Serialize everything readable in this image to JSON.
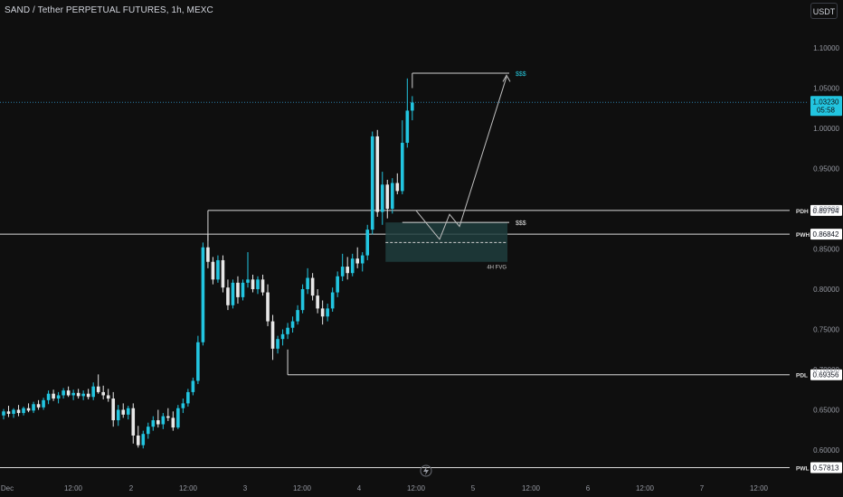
{
  "header": {
    "title": "SAND / Tether PERPETUAL FUTURES, 1h, MEXC",
    "currency_button": "USDT"
  },
  "colors": {
    "background": "#0f0f0f",
    "up": "#22c5e0",
    "down": "#e8e8e8",
    "price_line": "#2a7fa8",
    "fvg_fill": "#1f3d3d",
    "level_line": "#d9d9d9",
    "label_cyan": "#26c6da"
  },
  "chart_data": {
    "type": "candlestick",
    "y_axis": {
      "ticks": [
        "1.10000",
        "1.05000",
        "1.00000",
        "0.95000",
        "0.90000",
        "0.85000",
        "0.80000",
        "0.75000",
        "0.70000",
        "0.65000",
        "0.60000"
      ],
      "tick_values": [
        1.1,
        1.05,
        1.0,
        0.95,
        0.9,
        0.85,
        0.8,
        0.75,
        0.7,
        0.65,
        0.6
      ]
    },
    "x_axis": {
      "ticks": [
        "Dec",
        "12:00",
        "2",
        "12:00",
        "3",
        "12:00",
        "4",
        "12:00",
        "5",
        "12:00",
        "6",
        "12:00",
        "7",
        "12:00"
      ]
    },
    "current_price": {
      "value": 1.0323,
      "label": "1.03230",
      "countdown": "05:58"
    },
    "levels": [
      {
        "name": "PDH",
        "value": 0.89794,
        "label": "0.89794"
      },
      {
        "name": "PWH",
        "value": 0.86842,
        "label": "0.86842"
      },
      {
        "name": "PDL",
        "value": 0.69356,
        "label": "0.69356"
      },
      {
        "name": "PWL",
        "value": 0.57813,
        "label": "0.57813"
      }
    ],
    "annotations": {
      "fvg_label": "4H FVG",
      "fvg_range": [
        0.834,
        0.883
      ],
      "fvg_midline": 0.858,
      "liquidity_label_top": "$$$",
      "liquidity_label_fvg": "$$$",
      "liquidity_top_value": 1.0685
    },
    "candles": [
      [
        0.643,
        0.651,
        0.638,
        0.648
      ],
      [
        0.648,
        0.655,
        0.641,
        0.645
      ],
      [
        0.645,
        0.652,
        0.64,
        0.65
      ],
      [
        0.65,
        0.656,
        0.642,
        0.646
      ],
      [
        0.646,
        0.654,
        0.643,
        0.652
      ],
      [
        0.652,
        0.658,
        0.647,
        0.649
      ],
      [
        0.649,
        0.66,
        0.646,
        0.657
      ],
      [
        0.657,
        0.662,
        0.65,
        0.653
      ],
      [
        0.653,
        0.665,
        0.65,
        0.662
      ],
      [
        0.662,
        0.674,
        0.657,
        0.67
      ],
      [
        0.67,
        0.675,
        0.661,
        0.664
      ],
      [
        0.664,
        0.672,
        0.658,
        0.668
      ],
      [
        0.668,
        0.677,
        0.664,
        0.674
      ],
      [
        0.674,
        0.679,
        0.666,
        0.668
      ],
      [
        0.668,
        0.675,
        0.662,
        0.671
      ],
      [
        0.671,
        0.676,
        0.664,
        0.667
      ],
      [
        0.667,
        0.674,
        0.662,
        0.67
      ],
      [
        0.67,
        0.676,
        0.663,
        0.666
      ],
      [
        0.666,
        0.684,
        0.662,
        0.679
      ],
      [
        0.679,
        0.694,
        0.67,
        0.672
      ],
      [
        0.672,
        0.68,
        0.663,
        0.668
      ],
      [
        0.668,
        0.676,
        0.66,
        0.664
      ],
      [
        0.664,
        0.672,
        0.629,
        0.637
      ],
      [
        0.637,
        0.656,
        0.63,
        0.65
      ],
      [
        0.65,
        0.658,
        0.64,
        0.644
      ],
      [
        0.644,
        0.655,
        0.638,
        0.652
      ],
      [
        0.652,
        0.658,
        0.608,
        0.618
      ],
      [
        0.618,
        0.63,
        0.603,
        0.606
      ],
      [
        0.606,
        0.624,
        0.602,
        0.62
      ],
      [
        0.62,
        0.634,
        0.614,
        0.629
      ],
      [
        0.629,
        0.642,
        0.624,
        0.637
      ],
      [
        0.637,
        0.65,
        0.628,
        0.632
      ],
      [
        0.632,
        0.646,
        0.626,
        0.642
      ],
      [
        0.642,
        0.652,
        0.636,
        0.64
      ],
      [
        0.64,
        0.648,
        0.624,
        0.628
      ],
      [
        0.628,
        0.656,
        0.626,
        0.652
      ],
      [
        0.652,
        0.664,
        0.646,
        0.658
      ],
      [
        0.658,
        0.676,
        0.654,
        0.672
      ],
      [
        0.672,
        0.69,
        0.668,
        0.686
      ],
      [
        0.686,
        0.742,
        0.682,
        0.734
      ],
      [
        0.734,
        0.858,
        0.73,
        0.852
      ],
      [
        0.852,
        0.868,
        0.826,
        0.834
      ],
      [
        0.834,
        0.84,
        0.806,
        0.812
      ],
      [
        0.812,
        0.842,
        0.808,
        0.836
      ],
      [
        0.836,
        0.842,
        0.796,
        0.802
      ],
      [
        0.802,
        0.812,
        0.774,
        0.78
      ],
      [
        0.78,
        0.812,
        0.776,
        0.808
      ],
      [
        0.808,
        0.816,
        0.782,
        0.79
      ],
      [
        0.79,
        0.812,
        0.786,
        0.808
      ],
      [
        0.808,
        0.846,
        0.802,
        0.812
      ],
      [
        0.812,
        0.818,
        0.796,
        0.8
      ],
      [
        0.8,
        0.816,
        0.794,
        0.812
      ],
      [
        0.812,
        0.818,
        0.792,
        0.796
      ],
      [
        0.796,
        0.806,
        0.754,
        0.76
      ],
      [
        0.76,
        0.768,
        0.712,
        0.726
      ],
      [
        0.726,
        0.742,
        0.72,
        0.738
      ],
      [
        0.738,
        0.75,
        0.73,
        0.744
      ],
      [
        0.744,
        0.758,
        0.738,
        0.752
      ],
      [
        0.752,
        0.766,
        0.746,
        0.76
      ],
      [
        0.76,
        0.78,
        0.756,
        0.774
      ],
      [
        0.774,
        0.806,
        0.77,
        0.8
      ],
      [
        0.8,
        0.826,
        0.794,
        0.814
      ],
      [
        0.814,
        0.82,
        0.786,
        0.792
      ],
      [
        0.792,
        0.8,
        0.77,
        0.776
      ],
      [
        0.776,
        0.786,
        0.756,
        0.766
      ],
      [
        0.766,
        0.782,
        0.76,
        0.776
      ],
      [
        0.776,
        0.802,
        0.772,
        0.796
      ],
      [
        0.796,
        0.822,
        0.79,
        0.816
      ],
      [
        0.816,
        0.844,
        0.81,
        0.828
      ],
      [
        0.828,
        0.84,
        0.812,
        0.82
      ],
      [
        0.82,
        0.844,
        0.816,
        0.838
      ],
      [
        0.838,
        0.852,
        0.826,
        0.832
      ],
      [
        0.832,
        0.846,
        0.822,
        0.842
      ],
      [
        0.842,
        0.88,
        0.836,
        0.874
      ],
      [
        0.874,
        0.996,
        0.868,
        0.99
      ],
      [
        0.99,
        0.998,
        0.89,
        0.896
      ],
      [
        0.896,
        0.946,
        0.88,
        0.93
      ],
      [
        0.93,
        0.936,
        0.888,
        0.9
      ],
      [
        0.9,
        0.938,
        0.894,
        0.932
      ],
      [
        0.932,
        0.944,
        0.918,
        0.922
      ],
      [
        0.922,
        1.01,
        0.918,
        0.982
      ],
      [
        0.982,
        1.062,
        0.976,
        1.022
      ],
      [
        1.022,
        1.04,
        1.01,
        1.032
      ]
    ]
  }
}
